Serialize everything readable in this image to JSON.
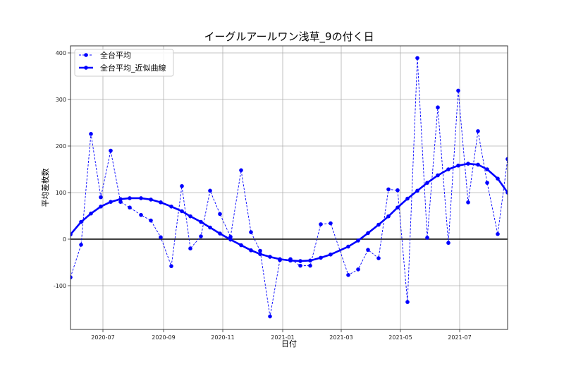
{
  "chart_data": {
    "type": "line",
    "title": "イーグルアールワン浅草_9の付く日",
    "xlabel": "日付",
    "ylabel": "平均差枚数",
    "ylim": [
      -200,
      420
    ],
    "yticks": [
      -100,
      0,
      100,
      200,
      300,
      400
    ],
    "xticks": [
      "2020-07",
      "2020-09",
      "2020-11",
      "2021-01",
      "2021-03",
      "2021-05",
      "2021-07"
    ],
    "grid": true,
    "legend_position": "upper left",
    "legend": [
      "全台平均",
      "全台平均_近似曲線"
    ],
    "series": [
      {
        "name": "全台平均",
        "style": "dashed-marker",
        "color": "#0000ff",
        "points": [
          [
            100,
            -82
          ],
          [
            115,
            -12
          ],
          [
            129,
            226
          ],
          [
            143,
            90
          ],
          [
            157,
            190
          ],
          [
            171,
            80
          ],
          [
            184,
            68
          ],
          [
            200,
            52
          ],
          [
            214,
            40
          ],
          [
            228,
            4
          ],
          [
            243,
            -58
          ],
          [
            258,
            114
          ],
          [
            270,
            -20
          ],
          [
            285,
            6
          ],
          [
            298,
            104
          ],
          [
            312,
            54
          ],
          [
            327,
            5
          ],
          [
            342,
            148
          ],
          [
            356,
            15
          ],
          [
            369,
            -25
          ],
          [
            383,
            -166
          ],
          [
            397,
            -45
          ],
          [
            412,
            -43
          ],
          [
            426,
            -57
          ],
          [
            440,
            -57
          ],
          [
            455,
            32
          ],
          [
            469,
            34
          ],
          [
            494,
            -77
          ],
          [
            508,
            -65
          ],
          [
            522,
            -23
          ],
          [
            537,
            -41
          ],
          [
            551,
            107
          ],
          [
            564,
            105
          ],
          [
            578,
            -135
          ],
          [
            592,
            389
          ],
          [
            606,
            3
          ],
          [
            621,
            283
          ],
          [
            636,
            -8
          ],
          [
            650,
            319
          ],
          [
            664,
            79
          ],
          [
            678,
            232
          ],
          [
            691,
            121
          ],
          [
            706,
            11
          ],
          [
            720,
            172
          ]
        ]
      },
      {
        "name": "全台平均_近似曲線",
        "style": "solid-thick-marker",
        "color": "#0000ff",
        "points": [
          [
            100,
            10
          ],
          [
            115,
            37
          ],
          [
            129,
            55
          ],
          [
            143,
            70
          ],
          [
            157,
            80
          ],
          [
            171,
            86
          ],
          [
            184,
            88
          ],
          [
            200,
            88
          ],
          [
            214,
            85
          ],
          [
            228,
            79
          ],
          [
            243,
            70
          ],
          [
            258,
            60
          ],
          [
            270,
            49
          ],
          [
            285,
            37
          ],
          [
            298,
            25
          ],
          [
            312,
            12
          ],
          [
            327,
            -1
          ],
          [
            342,
            -13
          ],
          [
            356,
            -24
          ],
          [
            369,
            -32
          ],
          [
            383,
            -38
          ],
          [
            397,
            -43
          ],
          [
            412,
            -46
          ],
          [
            426,
            -47
          ],
          [
            440,
            -46
          ],
          [
            455,
            -40
          ],
          [
            469,
            -33
          ],
          [
            494,
            -16
          ],
          [
            508,
            -3
          ],
          [
            522,
            13
          ],
          [
            537,
            31
          ],
          [
            551,
            49
          ],
          [
            564,
            68
          ],
          [
            578,
            87
          ],
          [
            592,
            104
          ],
          [
            606,
            121
          ],
          [
            621,
            137
          ],
          [
            636,
            150
          ],
          [
            650,
            158
          ],
          [
            664,
            162
          ],
          [
            678,
            160
          ],
          [
            691,
            150
          ],
          [
            706,
            130
          ],
          [
            720,
            100
          ]
        ]
      }
    ]
  }
}
